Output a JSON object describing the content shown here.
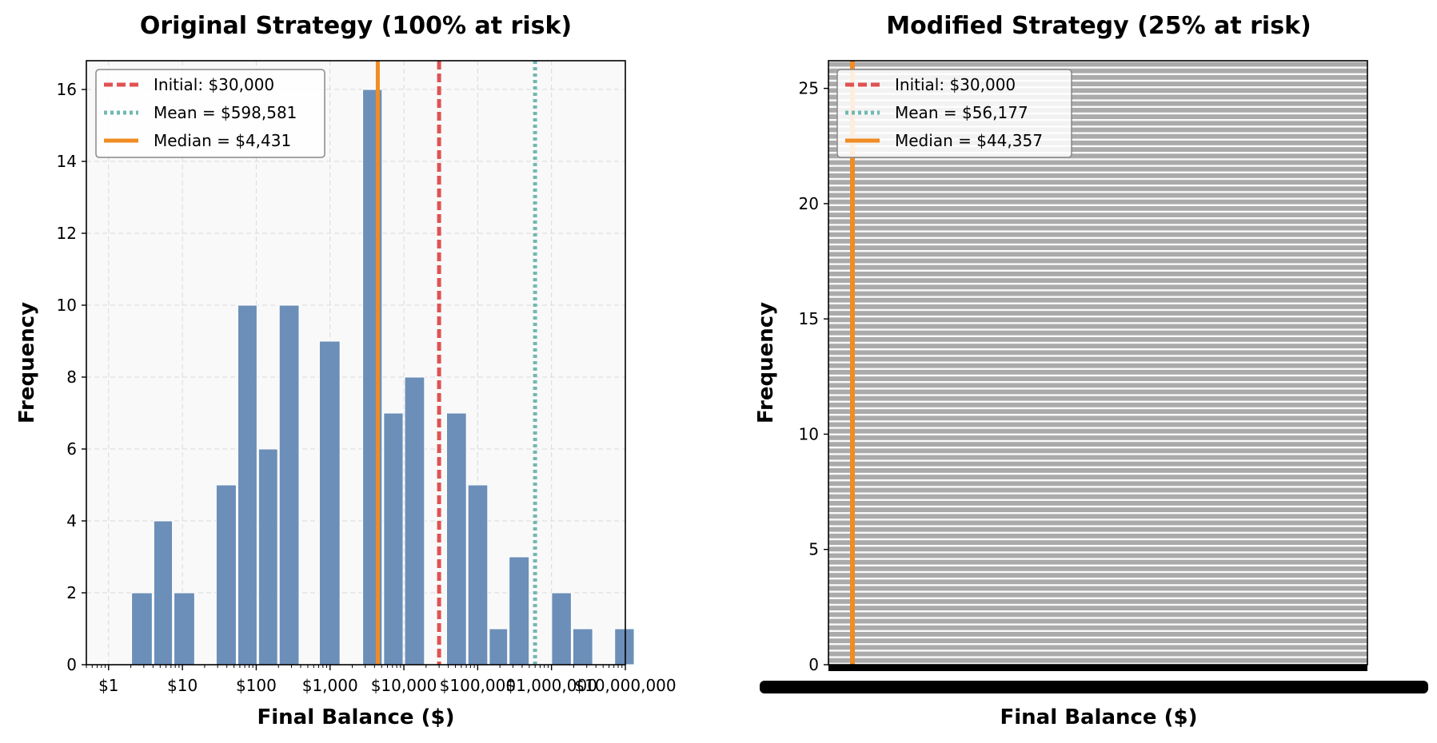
{
  "chart_data": [
    {
      "type": "bar",
      "title": "Original Strategy (100% at risk)",
      "xlabel": "Final Balance ($)",
      "ylabel": "Frequency",
      "xscale": "log",
      "xlim": [
        0.5,
        10000000
      ],
      "ylim": [
        0,
        16.8
      ],
      "yticks": [
        0,
        2,
        4,
        6,
        8,
        10,
        12,
        14,
        16
      ],
      "xtick_values": [
        1,
        10,
        100,
        1000,
        10000,
        100000,
        1000000,
        10000000
      ],
      "xtick_labels": [
        "$1",
        "$10",
        "$100",
        "$1,000",
        "$10,000",
        "$100,000",
        "$1,000,000",
        "$10,000,000"
      ],
      "grid": true,
      "bar_color": "#6b8fb8",
      "bins": [
        {
          "from": 2.0,
          "to": 4.0,
          "count": 2
        },
        {
          "from": 4.0,
          "to": 7.5,
          "count": 4
        },
        {
          "from": 7.5,
          "to": 15,
          "count": 2
        },
        {
          "from": 28,
          "to": 55,
          "count": 5
        },
        {
          "from": 55,
          "to": 105,
          "count": 10
        },
        {
          "from": 105,
          "to": 200,
          "count": 6
        },
        {
          "from": 200,
          "to": 390,
          "count": 10
        },
        {
          "from": 700,
          "to": 1400,
          "count": 9
        },
        {
          "from": 2700,
          "to": 5200,
          "count": 16
        },
        {
          "from": 5200,
          "to": 10000,
          "count": 7
        },
        {
          "from": 10000,
          "to": 19500,
          "count": 8
        },
        {
          "from": 37000,
          "to": 72000,
          "count": 7
        },
        {
          "from": 72000,
          "to": 140000,
          "count": 5
        },
        {
          "from": 140000,
          "to": 260000,
          "count": 1
        },
        {
          "from": 260000,
          "to": 510000,
          "count": 3
        },
        {
          "from": 980000,
          "to": 1900000,
          "count": 2
        },
        {
          "from": 1900000,
          "to": 3700000,
          "count": 1
        },
        {
          "from": 7000000,
          "to": 13500000,
          "count": 1
        }
      ],
      "reference_lines": [
        {
          "label": "Initial: $30,000",
          "value": 30000,
          "color": "#e05252",
          "style": "dashed"
        },
        {
          "label": "Mean = $598,581",
          "value": 598581,
          "color": "#70b8b0",
          "style": "dotted"
        },
        {
          "label": "Median = $4,431",
          "value": 4431,
          "color": "#f08c24",
          "style": "solid"
        }
      ],
      "legend_position": "top-left"
    },
    {
      "type": "bar",
      "title": "Modified Strategy (25% at risk)",
      "xlabel": "Final Balance ($)",
      "ylabel": "Frequency",
      "ylim": [
        0,
        26.2
      ],
      "yticks": [
        0,
        5,
        10,
        15,
        20,
        25
      ],
      "xtick_labels_note": "overlapping illegible tick labels",
      "stripe_color": "#aaaaaa",
      "reference_lines": [
        {
          "label": "Initial: $30,000",
          "value": 30000,
          "color": "#e05252",
          "style": "dashed"
        },
        {
          "label": "Mean = $56,177",
          "value": 56177,
          "color": "#70b8b0",
          "style": "dotted"
        },
        {
          "label": "Median = $44,357",
          "value": 44357,
          "color": "#f08c24",
          "style": "solid"
        }
      ],
      "legend_position": "top-left"
    }
  ]
}
